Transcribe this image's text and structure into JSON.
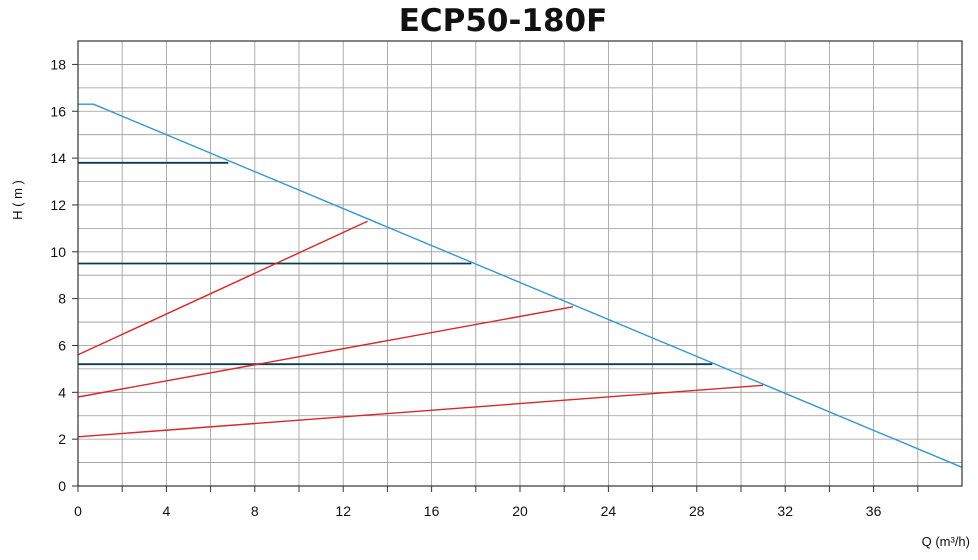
{
  "chart_data": {
    "type": "line",
    "title": "ECP50-180F",
    "xlabel": "Q (m³/h)",
    "ylabel": "H  ( m )",
    "xlim": [
      0,
      40
    ],
    "ylim": [
      0,
      19
    ],
    "xticks": [
      0,
      4,
      8,
      12,
      16,
      20,
      24,
      28,
      32,
      36
    ],
    "yticks": [
      0,
      2,
      4,
      6,
      8,
      10,
      12,
      14,
      16,
      18
    ],
    "grid": true,
    "colors": {
      "max_curve": "#3399cc",
      "fixed_speed": "#0b3d52",
      "system_curves": "#d62828",
      "grid": "#9a9a9a"
    },
    "series": [
      {
        "kind": "max_curve",
        "points": [
          [
            0,
            16.3
          ],
          [
            0.7,
            16.3
          ],
          [
            40,
            0.8
          ]
        ]
      },
      {
        "kind": "fixed_speed",
        "points": [
          [
            0,
            13.8
          ],
          [
            6.8,
            13.8
          ]
        ]
      },
      {
        "kind": "fixed_speed",
        "points": [
          [
            0,
            9.5
          ],
          [
            17.8,
            9.5
          ]
        ]
      },
      {
        "kind": "fixed_speed",
        "points": [
          [
            0,
            5.2
          ],
          [
            28.7,
            5.2
          ]
        ]
      },
      {
        "kind": "system_curves",
        "points": [
          [
            0,
            5.6
          ],
          [
            13.1,
            11.3
          ]
        ]
      },
      {
        "kind": "system_curves",
        "points": [
          [
            0,
            3.8
          ],
          [
            22.4,
            7.65
          ]
        ]
      },
      {
        "kind": "system_curves",
        "points": [
          [
            0,
            2.1
          ],
          [
            31.0,
            4.3
          ]
        ]
      }
    ]
  }
}
